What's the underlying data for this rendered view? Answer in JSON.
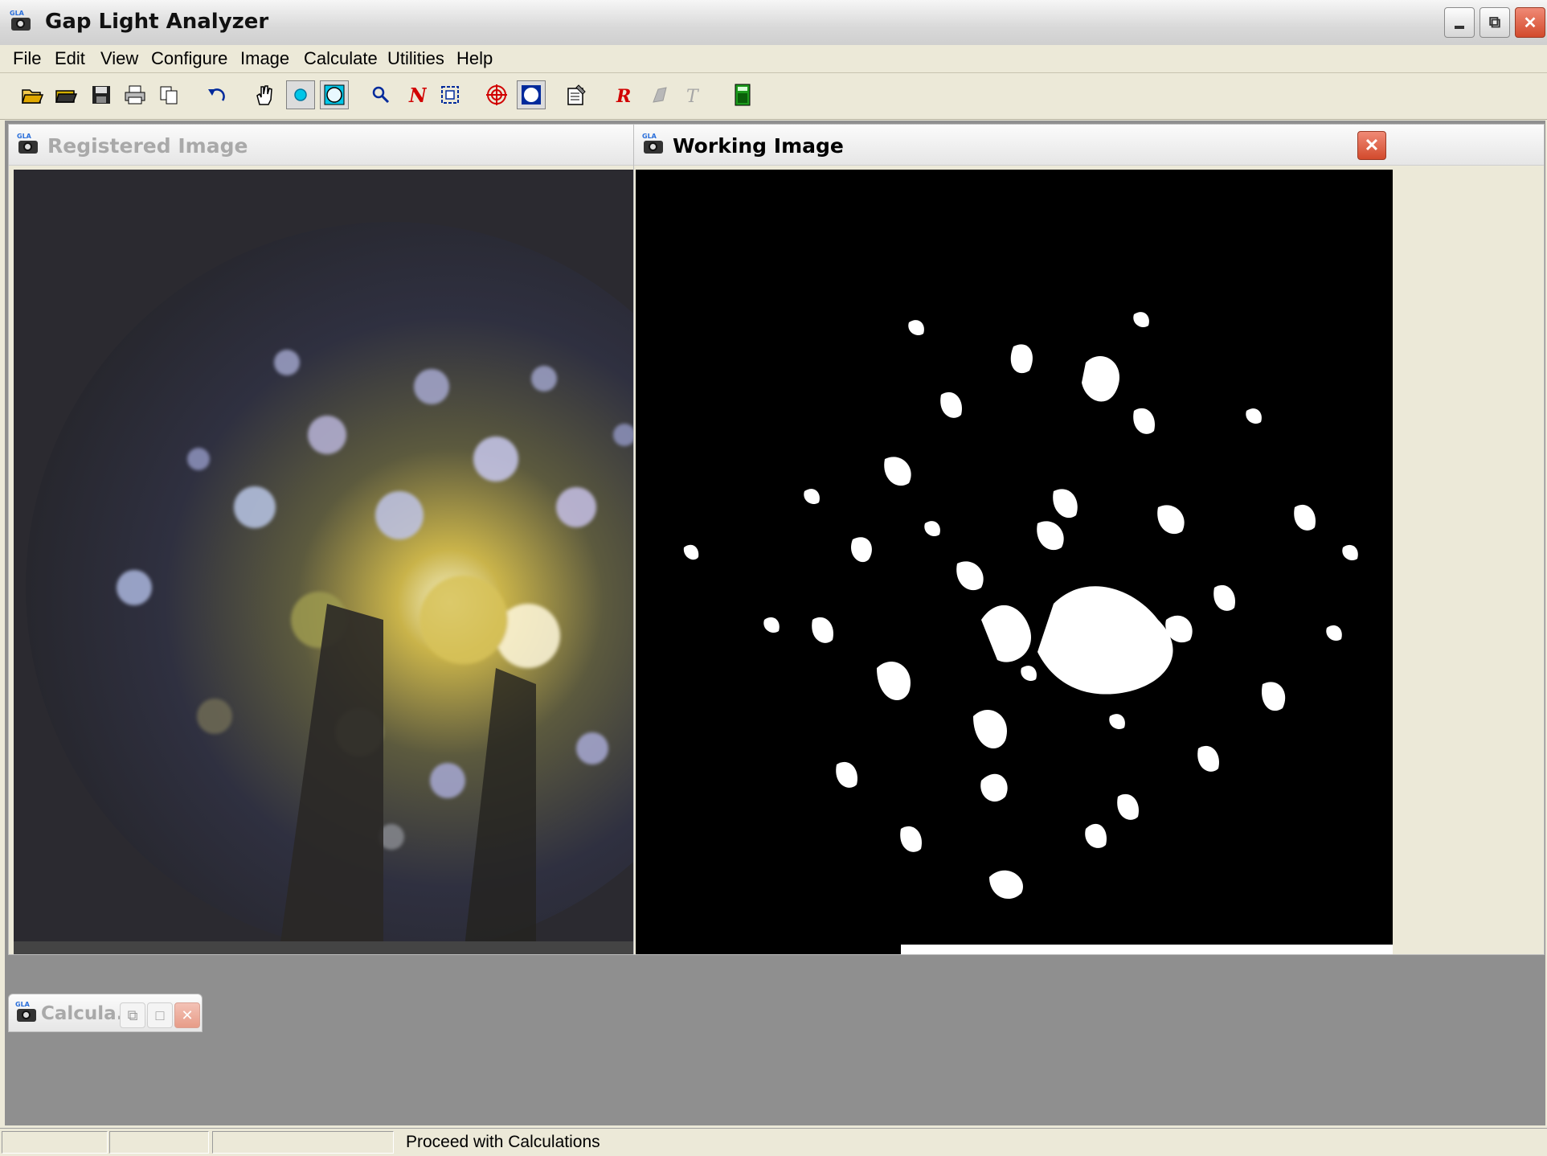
{
  "app": {
    "title": "Gap Light Analyzer",
    "icon_label": "GLA"
  },
  "window_controls": [
    "minimize",
    "restore",
    "close"
  ],
  "menu": [
    "File",
    "Edit",
    "View",
    "Configure",
    "Image",
    "Calculate",
    "Utilities",
    "Help"
  ],
  "toolbar": [
    {
      "name": "open-icon"
    },
    {
      "name": "open-config-icon"
    },
    {
      "name": "save-icon"
    },
    {
      "name": "print-icon"
    },
    {
      "name": "copy-icon"
    },
    {
      "name": "undo-icon"
    },
    {
      "name": "pan-hand-icon"
    },
    {
      "name": "point-icon"
    },
    {
      "name": "circle-register-icon"
    },
    {
      "name": "zoom-icon"
    },
    {
      "name": "north-icon"
    },
    {
      "name": "crop-icon"
    },
    {
      "name": "sky-grid-icon"
    },
    {
      "name": "mask-icon"
    },
    {
      "name": "properties-icon"
    },
    {
      "name": "red-r-icon"
    },
    {
      "name": "gray-tool-icon"
    },
    {
      "name": "threshold-t-icon"
    },
    {
      "name": "calculator-icon"
    }
  ],
  "windows": {
    "registered": {
      "title": "Registered Image"
    },
    "working": {
      "title": "Working Image"
    },
    "calculations": {
      "title": "Calcula..."
    }
  },
  "status": {
    "message": "Proceed with Calculations"
  }
}
